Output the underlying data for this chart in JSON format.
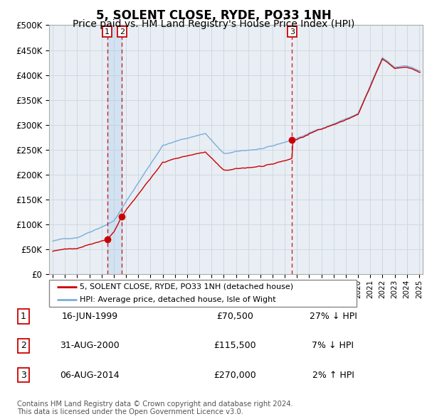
{
  "title": "5, SOLENT CLOSE, RYDE, PO33 1NH",
  "subtitle": "Price paid vs. HM Land Registry's House Price Index (HPI)",
  "title_fontsize": 12,
  "subtitle_fontsize": 10,
  "background_color": "#ffffff",
  "grid_color": "#d0d8e0",
  "plot_bg_color": "#e8eef4",
  "sale_marker_color": "#cc0000",
  "sale_vline_color": "#cc0000",
  "hpi_line_color": "#7aaddd",
  "price_line_color": "#cc0000",
  "xlabel": "",
  "ylabel": "",
  "ylim": [
    0,
    500000
  ],
  "xlim": [
    1994.7,
    2025.3
  ],
  "ytick_labels": [
    "£0",
    "£50K",
    "£100K",
    "£150K",
    "£200K",
    "£250K",
    "£300K",
    "£350K",
    "£400K",
    "£450K",
    "£500K"
  ],
  "ytick_values": [
    0,
    50000,
    100000,
    150000,
    200000,
    250000,
    300000,
    350000,
    400000,
    450000,
    500000
  ],
  "xtick_years": [
    1995,
    1996,
    1997,
    1998,
    1999,
    2000,
    2001,
    2002,
    2003,
    2004,
    2005,
    2006,
    2007,
    2008,
    2009,
    2010,
    2011,
    2012,
    2013,
    2014,
    2015,
    2016,
    2017,
    2018,
    2019,
    2020,
    2021,
    2022,
    2023,
    2024,
    2025
  ],
  "legend_entries": [
    "5, SOLENT CLOSE, RYDE, PO33 1NH (detached house)",
    "HPI: Average price, detached house, Isle of Wight"
  ],
  "sales": [
    {
      "date_num": 1999.46,
      "price": 70500,
      "label": "1"
    },
    {
      "date_num": 2000.66,
      "price": 115500,
      "label": "2"
    },
    {
      "date_num": 2014.59,
      "price": 270000,
      "label": "3"
    }
  ],
  "table_entries": [
    {
      "num": "1",
      "date": "16-JUN-1999",
      "price": "£70,500",
      "hpi": "27% ↓ HPI"
    },
    {
      "num": "2",
      "date": "31-AUG-2000",
      "price": "£115,500",
      "hpi": "7% ↓ HPI"
    },
    {
      "num": "3",
      "date": "06-AUG-2014",
      "price": "£270,000",
      "hpi": "2% ↑ HPI"
    }
  ],
  "footer": "Contains HM Land Registry data © Crown copyright and database right 2024.\nThis data is licensed under the Open Government Licence v3.0."
}
